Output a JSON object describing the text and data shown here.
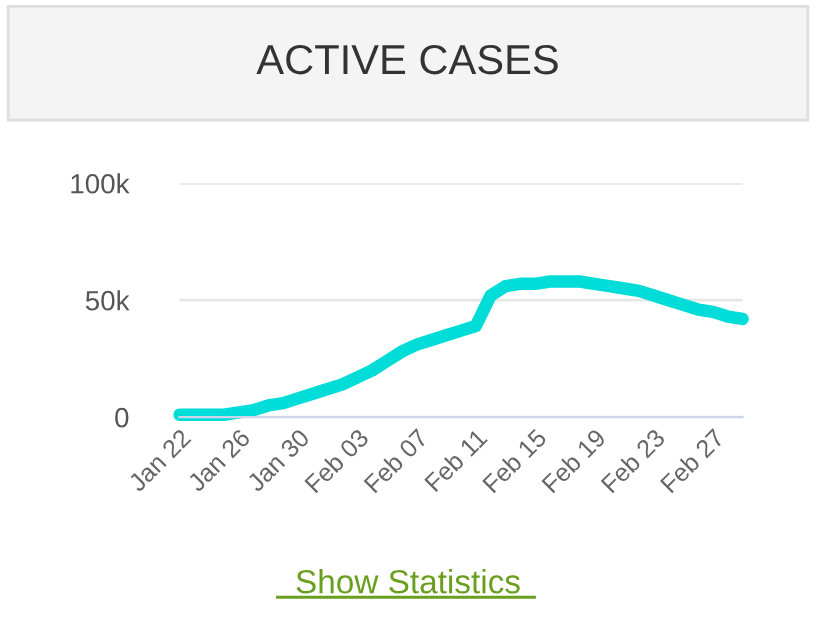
{
  "chart_data": {
    "type": "line",
    "title": "ACTIVE CASES",
    "categories": [
      "Jan 22",
      null,
      null,
      null,
      "Jan 26",
      null,
      null,
      null,
      "Jan 30",
      null,
      null,
      null,
      "Feb 03",
      null,
      null,
      null,
      "Feb 07",
      null,
      null,
      null,
      "Feb 11",
      null,
      null,
      null,
      "Feb 15",
      null,
      null,
      null,
      "Feb 19",
      null,
      null,
      null,
      "Feb 23",
      null,
      null,
      null,
      "Feb 27",
      null,
      null
    ],
    "series": [
      {
        "color": "#00dcd8",
        "values": [
          1000,
          1000,
          1000,
          1000,
          2000,
          3000,
          5000,
          6000,
          8000,
          10000,
          12000,
          14000,
          17000,
          20000,
          24000,
          28000,
          31000,
          33000,
          35000,
          37000,
          39000,
          52000,
          56000,
          57000,
          57000,
          58000,
          58000,
          58000,
          57000,
          56000,
          55000,
          54000,
          52000,
          50000,
          48000,
          46000,
          45000,
          43000,
          42000
        ]
      }
    ],
    "ylim": [
      0,
      100000
    ],
    "yticks": [
      {
        "value": 0,
        "label": "0"
      },
      {
        "value": 50000,
        "label": "50k"
      },
      {
        "value": 100000,
        "label": "100k"
      }
    ],
    "grid": "y",
    "marker": "none",
    "line_style": "solid",
    "annotations": [
      "Show Statistics"
    ]
  }
}
